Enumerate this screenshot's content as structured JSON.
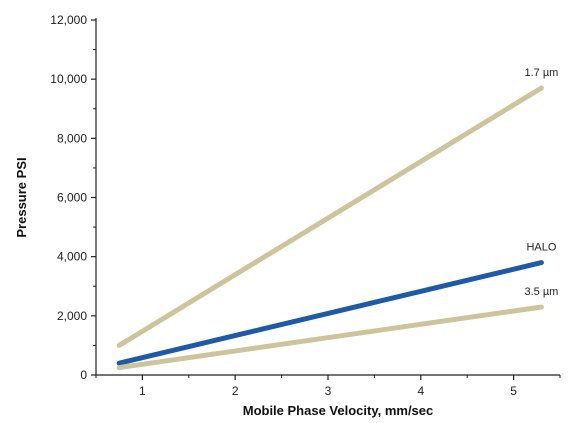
{
  "chart_data": {
    "type": "line",
    "title": "",
    "xlabel": "Mobile Phase Velocity, mm/sec",
    "ylabel": "Pressure PSI",
    "xlim": [
      0.5,
      5.5
    ],
    "ylim": [
      0,
      12000
    ],
    "xticks": [
      "1",
      "2",
      "3",
      "4",
      "5"
    ],
    "yticks": [
      "0",
      "2,000",
      "4,000",
      "6,000",
      "8,000",
      "10,000",
      "12,000"
    ],
    "grid": false,
    "series": [
      {
        "name": "1.7 µm",
        "color": "#cdc49c",
        "x": [
          0.75,
          5.3
        ],
        "y": [
          1000,
          9700
        ]
      },
      {
        "name": "HALO",
        "color": "#1e5aa8",
        "x": [
          0.75,
          5.3
        ],
        "y": [
          400,
          3800
        ]
      },
      {
        "name": "3.5 µm",
        "color": "#cdc49c",
        "x": [
          0.75,
          5.3
        ],
        "y": [
          250,
          2300
        ]
      }
    ]
  }
}
